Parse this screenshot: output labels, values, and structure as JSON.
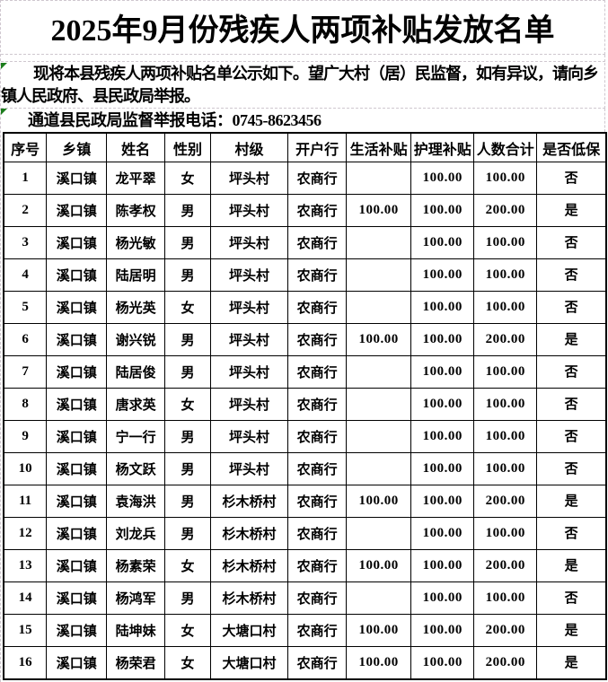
{
  "title": "2025年9月份残疾人两项补贴发放名单",
  "notice": {
    "paragraph": "现将本县残疾人两项补贴名单公示如下。望广大村（居）民监督，如有异议，请向乡镇人民政府、县民政局举报。",
    "hotline": "通道县民政局监督举报电话：0745-8623456"
  },
  "accent_colors": {
    "error_indicator_green": "#1d7d1d",
    "gridline_dashed": "#cfc7cf",
    "table_border": "#000000"
  },
  "table": {
    "headers": [
      "序号",
      "乡镇",
      "姓名",
      "性别",
      "村级",
      "开户行",
      "生活补贴",
      "护理补贴",
      "人数合计",
      "是否低保"
    ],
    "rows": [
      [
        "1",
        "溪口镇",
        "龙平翠",
        "女",
        "坪头村",
        "农商行",
        "",
        "100.00",
        "100.00",
        "否"
      ],
      [
        "2",
        "溪口镇",
        "陈孝权",
        "男",
        "坪头村",
        "农商行",
        "100.00",
        "100.00",
        "200.00",
        "是"
      ],
      [
        "3",
        "溪口镇",
        "杨光敏",
        "男",
        "坪头村",
        "农商行",
        "",
        "100.00",
        "100.00",
        "否"
      ],
      [
        "4",
        "溪口镇",
        "陆居明",
        "男",
        "坪头村",
        "农商行",
        "",
        "100.00",
        "100.00",
        "否"
      ],
      [
        "5",
        "溪口镇",
        "杨光英",
        "女",
        "坪头村",
        "农商行",
        "",
        "100.00",
        "100.00",
        "否"
      ],
      [
        "6",
        "溪口镇",
        "谢兴锐",
        "男",
        "坪头村",
        "农商行",
        "100.00",
        "100.00",
        "200.00",
        "是"
      ],
      [
        "7",
        "溪口镇",
        "陆居俊",
        "男",
        "坪头村",
        "农商行",
        "",
        "100.00",
        "100.00",
        "否"
      ],
      [
        "8",
        "溪口镇",
        "唐求英",
        "女",
        "坪头村",
        "农商行",
        "",
        "100.00",
        "100.00",
        "否"
      ],
      [
        "9",
        "溪口镇",
        "宁一行",
        "男",
        "坪头村",
        "农商行",
        "",
        "100.00",
        "100.00",
        "否"
      ],
      [
        "10",
        "溪口镇",
        "杨文跃",
        "男",
        "坪头村",
        "农商行",
        "",
        "100.00",
        "100.00",
        "否"
      ],
      [
        "11",
        "溪口镇",
        "袁海洪",
        "男",
        "杉木桥村",
        "农商行",
        "100.00",
        "100.00",
        "200.00",
        "是"
      ],
      [
        "12",
        "溪口镇",
        "刘龙兵",
        "男",
        "杉木桥村",
        "农商行",
        "",
        "100.00",
        "100.00",
        "否"
      ],
      [
        "13",
        "溪口镇",
        "杨素荣",
        "女",
        "杉木桥村",
        "农商行",
        "100.00",
        "100.00",
        "200.00",
        "是"
      ],
      [
        "14",
        "溪口镇",
        "杨鸿军",
        "男",
        "杉木桥村",
        "农商行",
        "",
        "100.00",
        "100.00",
        "否"
      ],
      [
        "15",
        "溪口镇",
        "陆坤妹",
        "女",
        "大塘口村",
        "农商行",
        "100.00",
        "100.00",
        "200.00",
        "是"
      ],
      [
        "16",
        "溪口镇",
        "杨荣君",
        "女",
        "大塘口村",
        "农商行",
        "100.00",
        "100.00",
        "200.00",
        "是"
      ]
    ]
  }
}
